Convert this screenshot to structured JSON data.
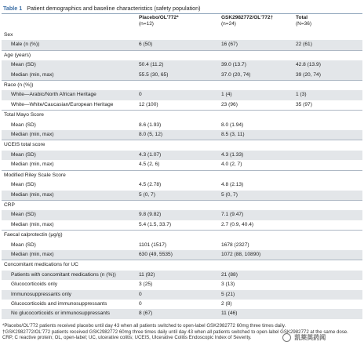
{
  "table": {
    "label": "Table 1",
    "title": "Patient demographics and baseline characteristics (safety population)",
    "headers": [
      {
        "line1": "",
        "line2": ""
      },
      {
        "line1": "Placebo/OL'772*",
        "line2": "(n=12)"
      },
      {
        "line1": "GSK2982772/OL'772†",
        "line2": "(n=24)"
      },
      {
        "line1": "Total",
        "line2": "(N=36)"
      }
    ],
    "rows": [
      {
        "type": "section",
        "shade": false,
        "cells": [
          "Sex",
          "",
          "",
          ""
        ]
      },
      {
        "type": "data",
        "shade": true,
        "cells": [
          "Male (n (%))",
          "6 (50)",
          "16 (67)",
          "22 (61)"
        ]
      },
      {
        "type": "section",
        "shade": false,
        "cells": [
          "Age (years)",
          "",
          "",
          ""
        ]
      },
      {
        "type": "data",
        "shade": true,
        "cells": [
          "Mean (SD)",
          "50.4 (11.2)",
          "39.0 (13.7)",
          "42.8 (13.9)"
        ]
      },
      {
        "type": "data",
        "shade": true,
        "cells": [
          "Median (min, max)",
          "55.5 (30, 65)",
          "37.0 (20, 74)",
          "39 (20, 74)"
        ]
      },
      {
        "type": "section",
        "shade": false,
        "cells": [
          "Race (n (%))",
          "",
          "",
          ""
        ]
      },
      {
        "type": "data",
        "shade": true,
        "cells": [
          "White—Arabic/North African Heritage",
          "0",
          "1 (4)",
          "1 (3)"
        ]
      },
      {
        "type": "data",
        "shade": false,
        "cells": [
          "White—White/Caucasian/European Heritage",
          "12 (100)",
          "23 (96)",
          "35 (97)"
        ]
      },
      {
        "type": "section",
        "shade": false,
        "cells": [
          "Total Mayo Score",
          "",
          "",
          ""
        ]
      },
      {
        "type": "data",
        "shade": false,
        "cells": [
          "Mean (SD)",
          "8.6 (1.93)",
          "8.0 (1.94)",
          ""
        ]
      },
      {
        "type": "data",
        "shade": true,
        "cells": [
          "Median (min, max)",
          "8.0 (5, 12)",
          "8.5 (3, 11)",
          ""
        ]
      },
      {
        "type": "section",
        "shade": false,
        "cells": [
          "UCEIS total score",
          "",
          "",
          ""
        ]
      },
      {
        "type": "data",
        "shade": true,
        "cells": [
          "Mean (SD)",
          "4.3 (1.07)",
          "4.3 (1.33)",
          ""
        ]
      },
      {
        "type": "data",
        "shade": false,
        "cells": [
          "Median (min, max)",
          "4.5 (2, 6)",
          "4.0 (2, 7)",
          ""
        ]
      },
      {
        "type": "section",
        "shade": false,
        "cells": [
          "Modified Riley Scale Score",
          "",
          "",
          ""
        ]
      },
      {
        "type": "data",
        "shade": false,
        "cells": [
          "Mean (SD)",
          "4.5 (2.78)",
          "4.8 (2.13)",
          ""
        ]
      },
      {
        "type": "data",
        "shade": true,
        "cells": [
          "Median (min, max)",
          "5 (0, 7)",
          "5 (0, 7)",
          ""
        ]
      },
      {
        "type": "section",
        "shade": false,
        "cells": [
          "CRP",
          "",
          "",
          ""
        ]
      },
      {
        "type": "data",
        "shade": true,
        "cells": [
          "Mean (SD)",
          "9.8 (9.82)",
          "7.1 (9.47)",
          ""
        ]
      },
      {
        "type": "data",
        "shade": false,
        "cells": [
          "Median (min, max)",
          "5.4 (1.5, 33.7)",
          "2.7 (0.9, 40.4)",
          ""
        ]
      },
      {
        "type": "section",
        "shade": false,
        "cells": [
          "Faecal calprotectin (μg/g)",
          "",
          "",
          ""
        ]
      },
      {
        "type": "data",
        "shade": false,
        "cells": [
          "Mean (SD)",
          "1101 (1517)",
          "1678 (2327)",
          ""
        ]
      },
      {
        "type": "data",
        "shade": true,
        "cells": [
          "Median (min, max)",
          "630 (49, 5535)",
          "1072 (88, 10890)",
          ""
        ]
      },
      {
        "type": "section",
        "shade": false,
        "cells": [
          "Concomitant medications for UC",
          "",
          "",
          ""
        ]
      },
      {
        "type": "data",
        "shade": true,
        "cells": [
          "Patients with concomitant medications (n (%))",
          "11 (92)",
          "21 (88)",
          ""
        ]
      },
      {
        "type": "data",
        "shade": false,
        "cells": [
          "Glucocorticoids only",
          "3 (25)",
          "3 (13)",
          ""
        ]
      },
      {
        "type": "data",
        "shade": true,
        "cells": [
          "Immunosuppressants only",
          "0",
          "5 (21)",
          ""
        ]
      },
      {
        "type": "data",
        "shade": false,
        "cells": [
          "Glucocorticoids and immunosuppressants",
          "0",
          "2 (8)",
          ""
        ]
      },
      {
        "type": "data",
        "shade": true,
        "cells": [
          "No glucocorticoids or immunosuppressants",
          "8 (67)",
          "11 (46)",
          ""
        ]
      }
    ]
  },
  "footnotes": {
    "placebo": "*Placebo/OL'772 patients received placebo until day 43 when all patients switched to open-label GSK2982772 60mg three times daily.",
    "gsk": "†GSK2982772/OL'772 patients received GSK2982772 60mg three times daily until day 43 when all patients switched to open-label GSK2982772 at the same dose.",
    "abbrev": "CRP, C reactive protein; OL, open-label; UC, ulcerative colitis; UCEIS, Ulcerative Colitis Endoscopic Index of Severity."
  },
  "watermark": {
    "text": "凯莱英药闻"
  }
}
